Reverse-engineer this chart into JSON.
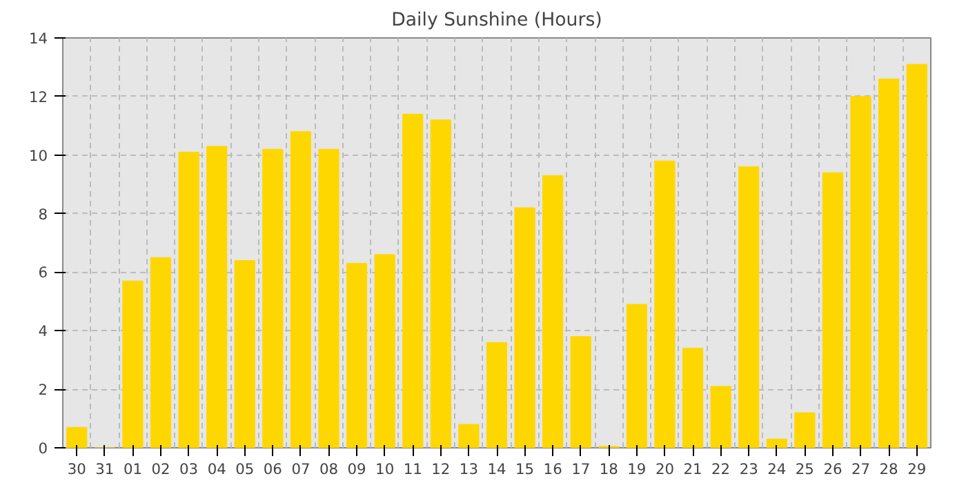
{
  "chart_data": {
    "type": "bar",
    "title": "Daily Sunshine (Hours)",
    "categories": [
      "30",
      "31",
      "01",
      "02",
      "03",
      "04",
      "05",
      "06",
      "07",
      "08",
      "09",
      "10",
      "11",
      "12",
      "13",
      "14",
      "15",
      "16",
      "17",
      "18",
      "19",
      "20",
      "21",
      "22",
      "23",
      "24",
      "25",
      "26",
      "27",
      "28",
      "29"
    ],
    "values": [
      0.7,
      0,
      5.7,
      6.5,
      10.1,
      10.3,
      6.4,
      10.2,
      10.8,
      10.2,
      6.3,
      6.6,
      11.4,
      11.2,
      0.8,
      3.6,
      8.2,
      9.3,
      3.8,
      0.05,
      4.9,
      9.8,
      3.4,
      2.1,
      9.6,
      0.3,
      1.2,
      9.4,
      12.0,
      12.6,
      13.1
    ],
    "color": "#ffd700",
    "ylim": [
      0,
      14
    ],
    "yticks": [
      0,
      2,
      4,
      6,
      8,
      10,
      12,
      14
    ],
    "grid": true
  }
}
